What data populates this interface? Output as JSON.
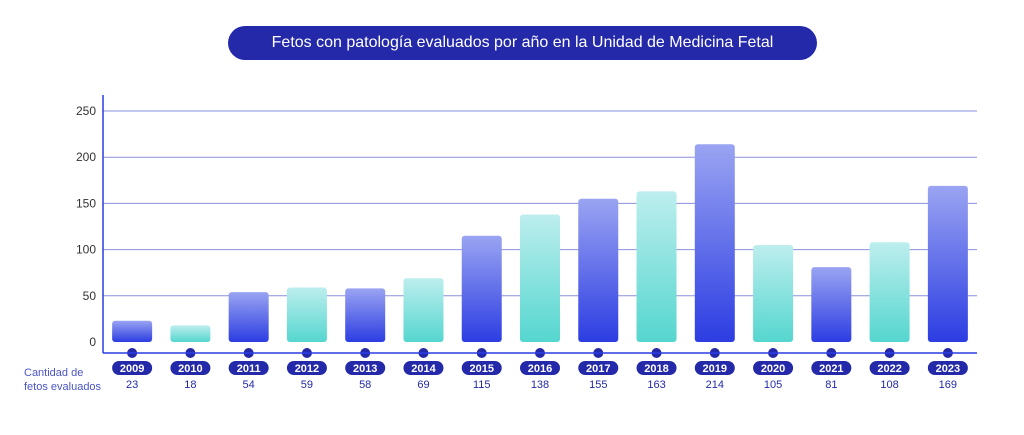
{
  "chart_data": {
    "type": "bar",
    "title": "Fetos con patología evaluados por año en la Unidad de Medicina Fetal",
    "categories": [
      "2009",
      "2010",
      "2011",
      "2012",
      "2013",
      "2014",
      "2015",
      "2016",
      "2017",
      "2018",
      "2019",
      "2020",
      "2021",
      "2022",
      "2023"
    ],
    "values": [
      23,
      18,
      54,
      59,
      58,
      69,
      115,
      138,
      155,
      163,
      214,
      105,
      81,
      108,
      169
    ],
    "yticks": [
      0,
      50,
      100,
      150,
      200,
      250
    ],
    "ylim": [
      0,
      265
    ],
    "grid": true,
    "row_label_line1": "Cantidad de",
    "row_label_line2": "fetos evaluados",
    "colors": {
      "blue_top": "#9aa4f2",
      "blue_bottom": "#2c3de2",
      "teal_top": "#bdeeee",
      "teal_bottom": "#55d6cf",
      "navy": "#2329a8",
      "axis": "#2c3de2",
      "grid": "#8a90dc"
    }
  }
}
